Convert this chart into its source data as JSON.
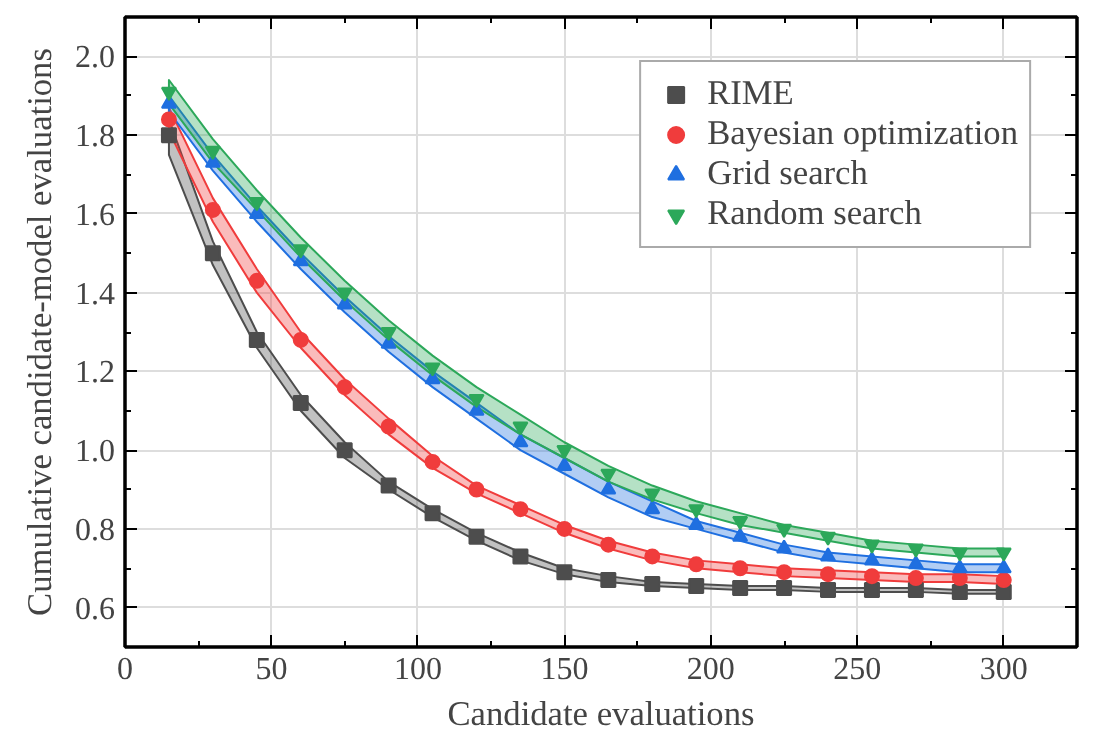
{
  "chart_data": {
    "type": "scatter",
    "xlabel": "Candidate evaluations",
    "ylabel": "Cumulative candidate-model evaluations",
    "x": [
      15,
      30,
      45,
      60,
      75,
      90,
      105,
      120,
      135,
      150,
      165,
      180,
      195,
      210,
      225,
      240,
      255,
      270,
      285,
      300
    ],
    "series": [
      {
        "name": "RIME",
        "color": "#4d4d4d",
        "marker": "square",
        "values": [
          1.8,
          1.5,
          1.28,
          1.12,
          1.0,
          0.91,
          0.84,
          0.78,
          0.73,
          0.69,
          0.67,
          0.66,
          0.655,
          0.65,
          0.65,
          0.645,
          0.645,
          0.645,
          0.64,
          0.64
        ],
        "lower": [
          1.75,
          1.47,
          1.26,
          1.1,
          0.98,
          0.9,
          0.83,
          0.77,
          0.72,
          0.685,
          0.665,
          0.655,
          0.65,
          0.645,
          0.645,
          0.64,
          0.64,
          0.64,
          0.635,
          0.635
        ],
        "upper": [
          1.84,
          1.53,
          1.3,
          1.14,
          1.02,
          0.92,
          0.85,
          0.79,
          0.74,
          0.7,
          0.68,
          0.665,
          0.66,
          0.655,
          0.655,
          0.65,
          0.65,
          0.65,
          0.645,
          0.645
        ]
      },
      {
        "name": "Bayesian optimization",
        "color": "#f03c3c",
        "marker": "circle",
        "values": [
          1.84,
          1.61,
          1.43,
          1.28,
          1.16,
          1.06,
          0.97,
          0.9,
          0.85,
          0.8,
          0.76,
          0.73,
          0.71,
          0.7,
          0.69,
          0.685,
          0.68,
          0.675,
          0.675,
          0.67
        ],
        "lower": [
          1.81,
          1.58,
          1.4,
          1.26,
          1.14,
          1.04,
          0.955,
          0.89,
          0.84,
          0.79,
          0.75,
          0.72,
          0.7,
          0.69,
          0.68,
          0.675,
          0.67,
          0.665,
          0.665,
          0.66
        ],
        "upper": [
          1.87,
          1.64,
          1.46,
          1.3,
          1.18,
          1.08,
          0.985,
          0.91,
          0.86,
          0.81,
          0.77,
          0.74,
          0.72,
          0.71,
          0.7,
          0.695,
          0.69,
          0.685,
          0.685,
          0.68
        ]
      },
      {
        "name": "Grid search",
        "color": "#1f6fe0",
        "marker": "triangle",
        "values": [
          1.88,
          1.73,
          1.6,
          1.48,
          1.37,
          1.27,
          1.18,
          1.1,
          1.02,
          0.96,
          0.9,
          0.85,
          0.81,
          0.78,
          0.75,
          0.73,
          0.72,
          0.71,
          0.7,
          0.7
        ],
        "lower": [
          1.86,
          1.71,
          1.58,
          1.46,
          1.35,
          1.25,
          1.16,
          1.08,
          1.0,
          0.94,
          0.88,
          0.83,
          0.8,
          0.77,
          0.74,
          0.72,
          0.71,
          0.7,
          0.69,
          0.69
        ],
        "upper": [
          1.9,
          1.75,
          1.62,
          1.5,
          1.39,
          1.29,
          1.2,
          1.12,
          1.04,
          0.98,
          0.92,
          0.87,
          0.82,
          0.79,
          0.76,
          0.74,
          0.73,
          0.72,
          0.71,
          0.71
        ]
      },
      {
        "name": "Random search",
        "color": "#2ca85a",
        "marker": "triangle_down",
        "values": [
          1.91,
          1.76,
          1.63,
          1.51,
          1.4,
          1.3,
          1.21,
          1.13,
          1.06,
          1.0,
          0.94,
          0.89,
          0.85,
          0.82,
          0.8,
          0.78,
          0.76,
          0.75,
          0.74,
          0.74
        ],
        "lower": [
          1.88,
          1.73,
          1.61,
          1.49,
          1.38,
          1.28,
          1.19,
          1.11,
          1.04,
          0.98,
          0.92,
          0.875,
          0.84,
          0.81,
          0.79,
          0.77,
          0.75,
          0.74,
          0.73,
          0.73
        ],
        "upper": [
          1.94,
          1.79,
          1.66,
          1.54,
          1.43,
          1.33,
          1.24,
          1.16,
          1.09,
          1.02,
          0.96,
          0.91,
          0.87,
          0.84,
          0.81,
          0.79,
          0.77,
          0.76,
          0.75,
          0.75
        ]
      }
    ],
    "xlim": [
      0,
      325
    ],
    "xticks": [
      0,
      50,
      100,
      150,
      200,
      250,
      300
    ],
    "ylim": [
      0.5,
      2.1
    ],
    "yticks": [
      0.6,
      0.8,
      {
        "value": 1.0,
        "label": "1.0"
      },
      1.2,
      1.4,
      1.6,
      1.8,
      {
        "value": 2.0,
        "label": "2.0"
      }
    ],
    "grid": true,
    "legend": "top right"
  }
}
